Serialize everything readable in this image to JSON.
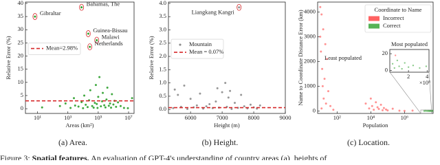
{
  "chart_data": [
    {
      "type": "scatter",
      "caption": "(a) Area.",
      "xlabel": "Areas (km²)",
      "ylabel": "Relative Error (%)",
      "xscale": "log",
      "xlim": [
        1.6,
        23000000
      ],
      "ylim": [
        -1.8,
        40.5
      ],
      "xticks": [
        {
          "value": 10,
          "label": "10¹"
        },
        {
          "value": 1000,
          "label": "10³"
        },
        {
          "value": 100000,
          "label": "10⁵"
        },
        {
          "value": 10000000,
          "label": "10⁷"
        }
      ],
      "yticks": [
        0,
        5,
        10,
        15,
        20,
        25,
        30,
        35,
        40
      ],
      "legend": "center left",
      "series": [
        {
          "color": "#2ca02c",
          "x": [
            20,
            300,
            700,
            1500,
            2500,
            3000,
            5000,
            8000,
            10000,
            12000,
            15000,
            20000,
            25000,
            30000,
            40000,
            50000,
            60000,
            70000,
            80000,
            90000,
            100000,
            120000,
            150000,
            180000,
            200000,
            250000,
            300000,
            350000,
            400000,
            500000,
            600000,
            700000,
            800000,
            1000000,
            1200000,
            1500000,
            2000000,
            3000000,
            5000000,
            9000000,
            17000000
          ],
          "values": [
            0.5,
            1,
            2,
            0.3,
            4,
            1.2,
            0.8,
            2.5,
            0.2,
            5,
            1.5,
            0.6,
            3.2,
            7,
            1,
            0.4,
            2.2,
            9,
            1.8,
            0.3,
            4.5,
            12,
            0.9,
            2.8,
            6,
            1.3,
            0.5,
            3.5,
            8,
            1.1,
            2,
            0.4,
            5.5,
            1.6,
            3,
            0.7,
            2.4,
            1,
            0.3,
            0.2,
            4
          ]
        }
      ],
      "annotations": [
        {
          "text": "Gibraltar",
          "x": 6.8,
          "y": 35
        },
        {
          "text": "Bahamas, The",
          "x": 8000,
          "y": 38.5
        },
        {
          "text": "Guinea-Bissau",
          "x": 22000,
          "y": 28.5
        },
        {
          "text": "Malawi",
          "x": 80000,
          "y": 26
        },
        {
          "text": "Netherlands",
          "x": 28000,
          "y": 23.5
        }
      ],
      "hline": {
        "value": 2.98,
        "label": "Mean=2.98%",
        "color": "#d62728"
      }
    },
    {
      "type": "scatter",
      "caption": "(b) Height.",
      "xlabel": "Height (m)",
      "ylabel": "Relative Error (%)",
      "xlim": [
        5300,
        9000
      ],
      "ylim": [
        -0.15,
        4.05
      ],
      "xticks": [
        6000,
        7000,
        8000,
        9000
      ],
      "yticks": [
        {
          "value": 0,
          "label": "0.0"
        },
        {
          "value": 0.5,
          "label": "0.5"
        },
        {
          "value": 1,
          "label": "1.0"
        },
        {
          "value": 1.5,
          "label": "1.5"
        },
        {
          "value": 2,
          "label": "2.0"
        },
        {
          "value": 2.5,
          "label": "2.5"
        },
        {
          "value": 3,
          "label": "3.0"
        },
        {
          "value": 3.5,
          "label": "3.5"
        },
        {
          "value": 4,
          "label": "4.0"
        }
      ],
      "legend": "center left",
      "series": [
        {
          "name": "Mountain",
          "color": "#8c8c8c",
          "x": [
            5450,
            5600,
            5700,
            5900,
            6000,
            6100,
            6200,
            6300,
            6400,
            6500,
            6600,
            6700,
            6800,
            6900,
            7000,
            7100,
            7150,
            7200,
            7300,
            7400,
            7500,
            7600,
            7700,
            7800,
            7900,
            8000,
            8100,
            8200,
            5500,
            5800,
            6850,
            7250
          ],
          "values": [
            0.05,
            0.55,
            0.1,
            0.02,
            0.4,
            0.08,
            0.15,
            0.6,
            0.03,
            0.12,
            0.2,
            0.05,
            0.3,
            0.07,
            0.65,
            1.0,
            0.1,
            0.45,
            0.02,
            0.25,
            0.06,
            0.55,
            0.12,
            0.04,
            0.18,
            0.08,
            0.03,
            0.15,
            0.75,
            0.9,
            0.8,
            0.7
          ]
        }
      ],
      "annotations": [
        {
          "text": "Liangkang Kangri",
          "x": 7535,
          "y": 3.85
        }
      ],
      "hline": {
        "value": 0.07,
        "label": "Mean = 0.07%",
        "color": "#d62728"
      }
    },
    {
      "type": "scatter",
      "caption": "(c) Location.",
      "xlabel": "Population",
      "ylabel": "Name to Coordinate Distance Error (km)",
      "xscale": "log",
      "xlim": [
        7,
        50000000
      ],
      "ylim": [
        -100,
        4400
      ],
      "xticks": [
        {
          "value": 100,
          "label": "10²"
        },
        {
          "value": 10000,
          "label": "10⁴"
        },
        {
          "value": 1000000,
          "label": "10⁶"
        }
      ],
      "yticks": [
        0,
        1000,
        2000,
        3000,
        4000
      ],
      "legend": "upper right",
      "legend_title": "Coordinate to Name",
      "notes": [
        "Least populated"
      ],
      "series": [
        {
          "name": "Incorrect",
          "color": "#ff3b3b",
          "x": [
            10,
            12,
            15,
            10,
            20,
            11,
            25,
            13,
            18,
            14,
            30,
            16,
            22,
            12,
            40,
            60,
            5000,
            8000,
            10000,
            12000,
            15000,
            20000,
            25000,
            30000,
            40000,
            50000,
            60000,
            80000,
            100000,
            200000,
            500000,
            1000000,
            3000000
          ],
          "values": [
            4200,
            3900,
            3300,
            3000,
            2700,
            2400,
            2100,
            1700,
            1300,
            1000,
            800,
            500,
            300,
            100,
            200,
            50,
            300,
            100,
            500,
            200,
            50,
            350,
            150,
            80,
            250,
            30,
            120,
            60,
            20,
            90,
            10,
            5,
            15
          ]
        },
        {
          "name": "Correct",
          "color": "#2ca02c",
          "x": [
            15000000,
            18000000,
            22000000,
            26000000,
            30000000,
            34000000,
            38000000,
            42000000,
            45000000
          ],
          "values": [
            5,
            10,
            3,
            8,
            2,
            6,
            4,
            2,
            9
          ]
        }
      ]
    },
    {
      "type": "scatter",
      "title": "Most populated",
      "x_offset_label": "×10⁸",
      "xlim": [
        0,
        4.2
      ],
      "ylim": [
        -2,
        25
      ],
      "xticks": [
        2,
        4
      ],
      "yticks": [
        0,
        20
      ],
      "series": [
        {
          "color": "#2ca02c",
          "x": [
            0.3,
            0.5,
            0.8,
            1.0,
            1.3,
            1.6,
            2.0,
            2.5,
            3.2,
            3.9
          ],
          "values": [
            8,
            3,
            12,
            5,
            2,
            9,
            4,
            6,
            3,
            5
          ]
        },
        {
          "color": "#ff3b3b",
          "x": [
            0.6
          ],
          "values": [
            18
          ]
        }
      ]
    }
  ],
  "figure_caption": {
    "label": "Figure 3:",
    "heading": "Spatial features.",
    "text": "An evaluation of GPT-4's understanding of country areas (a), heights of"
  }
}
